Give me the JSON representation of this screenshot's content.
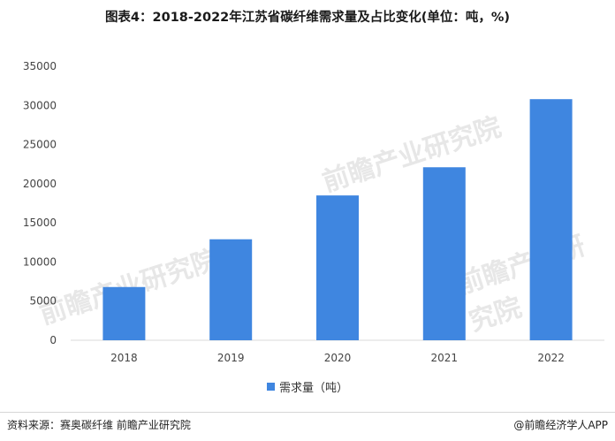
{
  "title": "图表4：2018-2022年江苏省碳纤维需求量及占比变化(单位：吨，%)",
  "chart_data": {
    "type": "bar",
    "categories": [
      "2018",
      "2019",
      "2020",
      "2021",
      "2022"
    ],
    "series": [
      {
        "name": "需求量（吨）",
        "values": [
          6800,
          12900,
          18500,
          22100,
          30800
        ],
        "color": "#3f86e0"
      }
    ],
    "ylim": [
      0,
      35000
    ],
    "yticks": [
      0,
      5000,
      10000,
      15000,
      20000,
      25000,
      30000,
      35000
    ],
    "grid": false,
    "legend_position": "bottom"
  },
  "footer": {
    "source": "资料来源：赛奥碳纤维 前瞻产业研究院",
    "credit": "@前瞻经济学人APP"
  },
  "watermark": {
    "text": "前瞻产业研究院"
  }
}
